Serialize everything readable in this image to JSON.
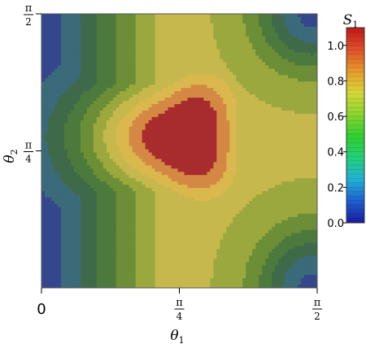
{
  "chart_data": {
    "type": "heatmap",
    "subtype": "filled-contour",
    "xlabel": "θ1",
    "ylabel": "θ2",
    "x_range": [
      0,
      1.5708
    ],
    "y_range": [
      0,
      1.5708
    ],
    "x_ticks": [
      {
        "value": 0,
        "label": "0"
      },
      {
        "value": 0.7854,
        "label": "π/4"
      },
      {
        "value": 1.5708,
        "label": "π/2"
      }
    ],
    "y_ticks": [
      {
        "value": 0.7854,
        "label": "π/4"
      },
      {
        "value": 1.5708,
        "label": "π/2"
      }
    ],
    "colorbar": {
      "label": "S1",
      "range": [
        0,
        1.1
      ],
      "ticks": [
        "0.0",
        "0.2",
        "0.4",
        "0.6",
        "0.8",
        "1.0"
      ],
      "tick_values": [
        0,
        0.2,
        0.4,
        0.6,
        0.8,
        1.0
      ],
      "colors": [
        "#1a1a9e",
        "#1e5fd0",
        "#1fb3d6",
        "#22d07a",
        "#2fd02f",
        "#8bd62e",
        "#d8d838",
        "#e89a2a",
        "#e0502a",
        "#c01818"
      ]
    },
    "contour_levels": [
      0.1,
      0.2,
      0.3,
      0.4,
      0.5,
      0.6,
      0.7,
      0.8,
      0.9
    ],
    "band_colors": [
      "#34468c",
      "#3b6a7a",
      "#3f6a4a",
      "#4c7a3c",
      "#6b8e36",
      "#9aa83e",
      "#c6b84c",
      "#dab84e",
      "#d48844",
      "#a82c2e"
    ]
  },
  "axes": {
    "x_label_main": "θ",
    "x_label_sub": "1",
    "y_label_main": "θ",
    "y_label_sub": "2",
    "cb_label_main": "S",
    "cb_label_sub": "1"
  }
}
